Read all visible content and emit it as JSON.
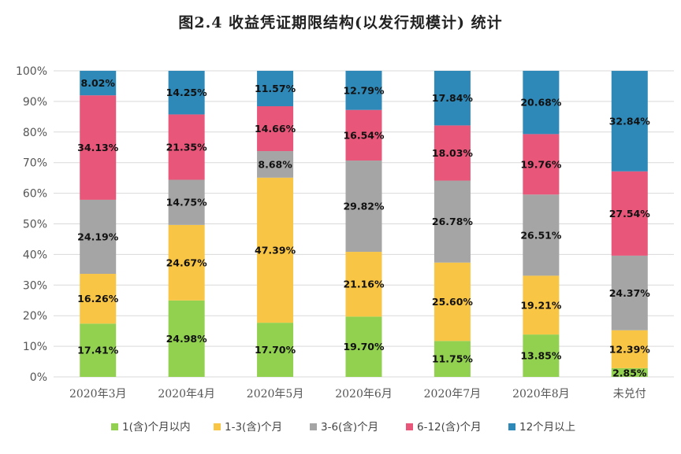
{
  "chart_data": {
    "type": "bar",
    "stacked": true,
    "percent": true,
    "title": "图2.4 收益凭证期限结构(以发行规模计) 统计",
    "xlabel": "",
    "ylabel": "",
    "ylim": [
      0,
      100
    ],
    "yticks": [
      "0%",
      "10%",
      "20%",
      "30%",
      "40%",
      "50%",
      "60%",
      "70%",
      "80%",
      "90%",
      "100%"
    ],
    "categories": [
      "2020年3月",
      "2020年4月",
      "2020年5月",
      "2020年6月",
      "2020年7月",
      "2020年8月",
      "未兑付"
    ],
    "legend_position": "bottom",
    "series": [
      {
        "name": "1(含)个月以内",
        "color": "#92D050",
        "values": [
          17.41,
          24.98,
          17.7,
          19.7,
          11.75,
          13.85,
          2.85
        ],
        "labels": [
          "17.41%",
          "24.98%",
          "17.70%",
          "19.70%",
          "11.75%",
          "13.85%",
          "2.85%"
        ]
      },
      {
        "name": "1-3(含)个月",
        "color": "#F9C545",
        "values": [
          16.26,
          24.67,
          47.39,
          21.16,
          25.6,
          19.21,
          12.39
        ],
        "labels": [
          "16.26%",
          "24.67%",
          "47.39%",
          "21.16%",
          "25.60%",
          "19.21%",
          "12.39%"
        ]
      },
      {
        "name": "3-6(含)个月",
        "color": "#A5A5A5",
        "values": [
          24.19,
          14.75,
          8.68,
          29.82,
          26.78,
          26.51,
          24.37
        ],
        "labels": [
          "24.19%",
          "14.75%",
          "8.68%",
          "29.82%",
          "26.78%",
          "26.51%",
          "24.37%"
        ]
      },
      {
        "name": "6-12(含)个月",
        "color": "#E8577A",
        "values": [
          34.13,
          21.35,
          14.66,
          16.54,
          18.03,
          19.76,
          27.54
        ],
        "labels": [
          "34.13%",
          "21.35%",
          "14.66%",
          "16.54%",
          "18.03%",
          "19.76%",
          "27.54%"
        ]
      },
      {
        "name": "12个月以上",
        "color": "#2E89B8",
        "values": [
          8.02,
          14.25,
          11.57,
          12.79,
          17.84,
          20.68,
          32.84
        ],
        "labels": [
          "8.02%",
          "14.25%",
          "11.57%",
          "12.79%",
          "17.84%",
          "20.68%",
          "32.84%"
        ]
      }
    ]
  }
}
